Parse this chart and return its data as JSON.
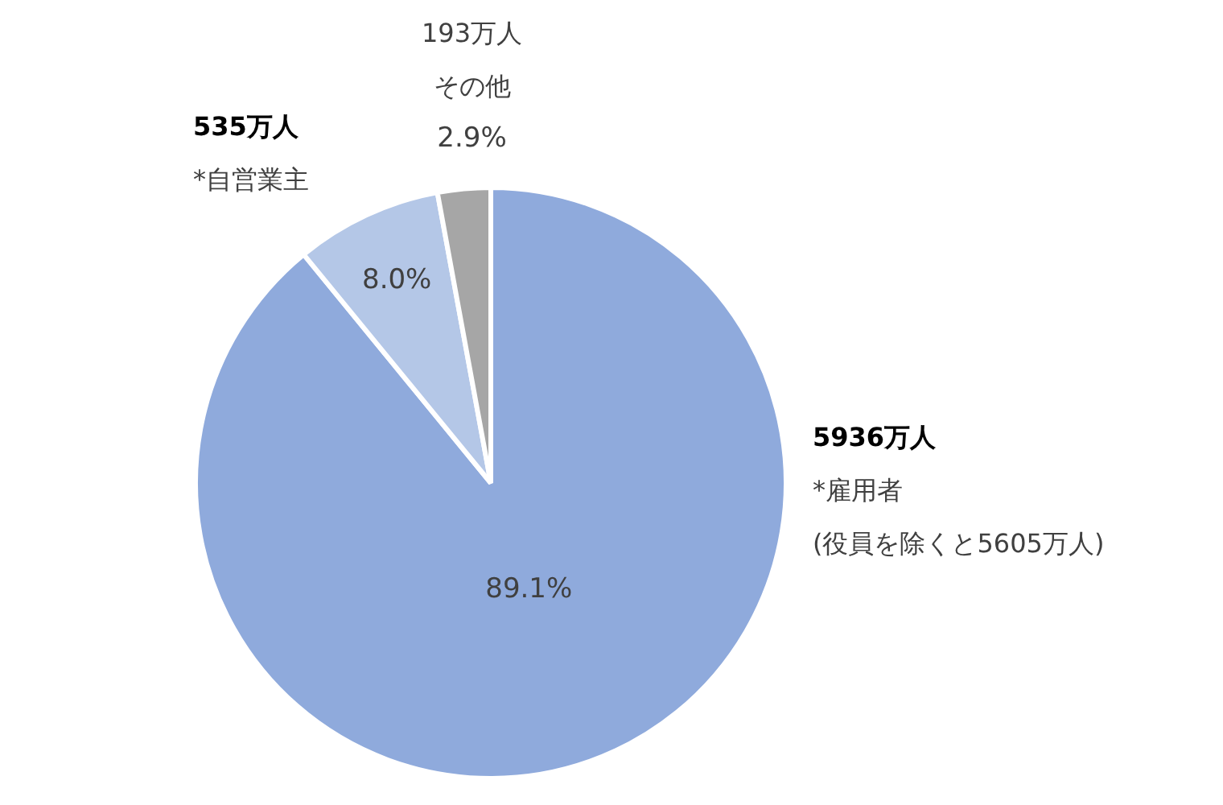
{
  "chart_data": {
    "type": "pie",
    "categories": [
      "*雇用者",
      "*自営業主",
      "その他"
    ],
    "values": [
      5936,
      535,
      193
    ],
    "value_labels": [
      "5936万人",
      "535万人",
      "193万人"
    ],
    "colors": [
      "#8faadc",
      "#b4c7e7",
      "#a6a6a6"
    ],
    "annotations": [
      {
        "text": "89.1%",
        "x": "*雇用者"
      },
      {
        "text": "8.0%",
        "x": "*自営業主"
      },
      {
        "text": "2.9%",
        "x": "その他"
      },
      "(役員を除くと5605万人)"
    ]
  }
}
